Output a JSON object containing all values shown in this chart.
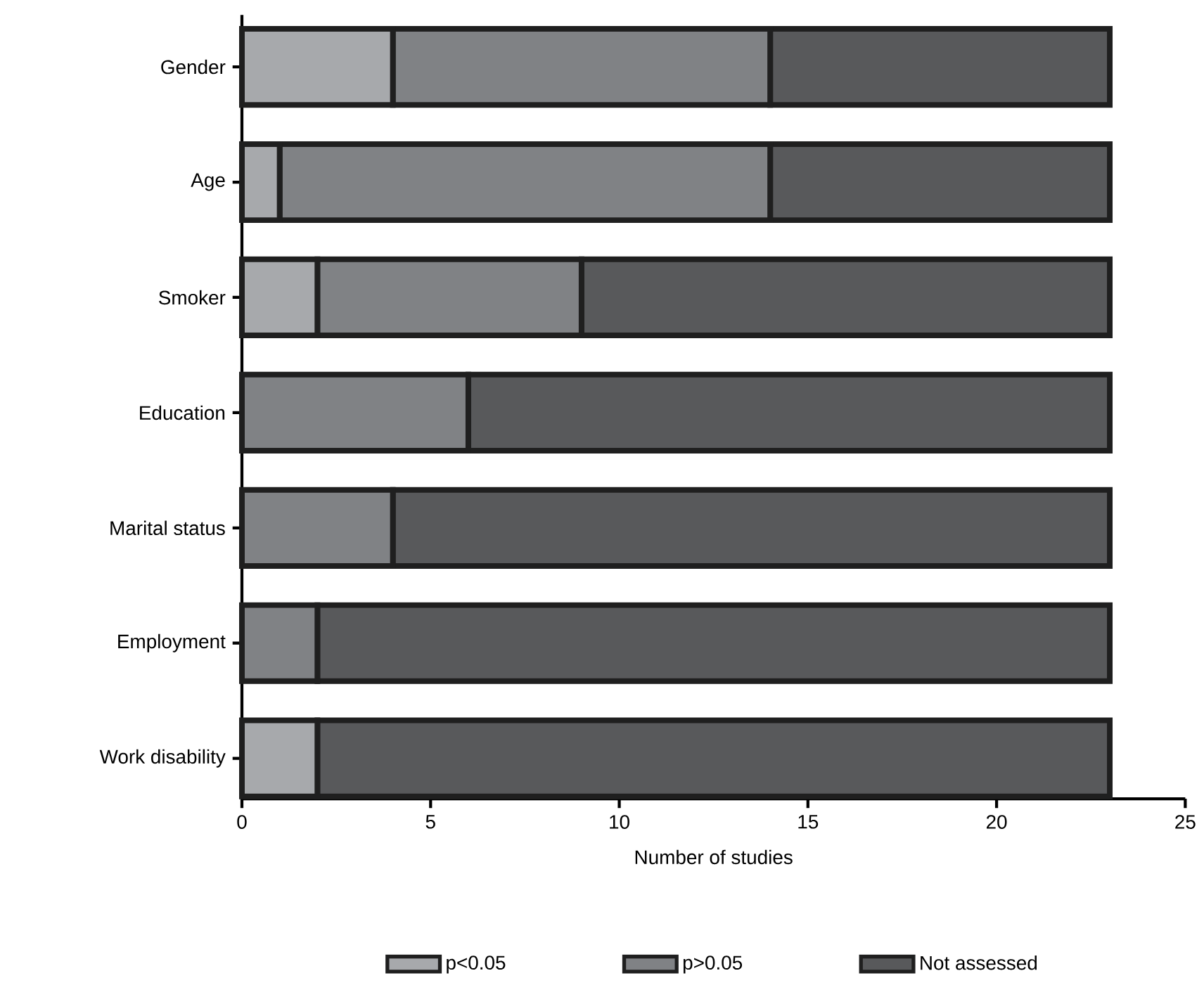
{
  "chart_data": {
    "type": "bar",
    "orientation": "horizontal",
    "stacked": true,
    "xlabel": "Number of studies",
    "categories": [
      "Gender",
      "Age",
      "Smoker",
      "Education",
      "Marital status",
      "Employment",
      "Work disability"
    ],
    "series": [
      {
        "name": "p<0.05",
        "color": "#a7a9ac",
        "values": [
          4,
          1,
          2,
          0,
          0,
          0,
          2
        ]
      },
      {
        "name": "p>0.05",
        "color": "#808285",
        "values": [
          10,
          13,
          7,
          6,
          4,
          2,
          0
        ]
      },
      {
        "name": "Not assessed",
        "color": "#58595b",
        "values": [
          9,
          9,
          14,
          17,
          19,
          21,
          21
        ]
      }
    ],
    "xlim": [
      0,
      25
    ],
    "xticks": [
      0,
      5,
      10,
      15,
      20,
      25
    ],
    "legend": "bottom",
    "grid": false
  }
}
